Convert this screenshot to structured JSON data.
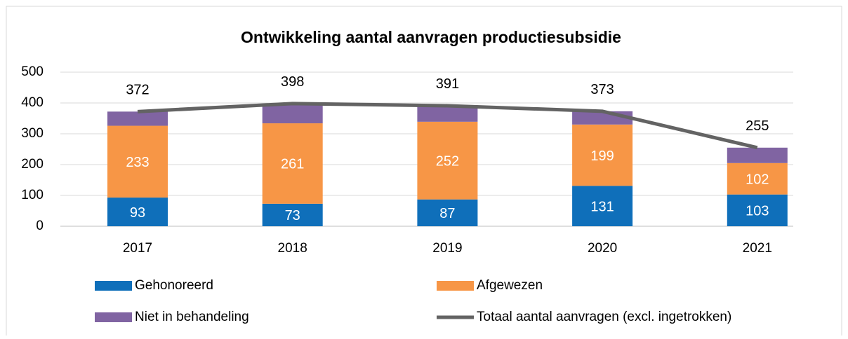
{
  "chart_data": {
    "type": "bar",
    "stacked": true,
    "title": "Ontwikkeling aantal aanvragen productiesubsidie",
    "categories": [
      "2017",
      "2018",
      "2019",
      "2020",
      "2021"
    ],
    "series": [
      {
        "name": "Gehonoreerd",
        "color": "#0f6fba",
        "values": [
          93,
          73,
          87,
          131,
          103
        ],
        "data_labels": true
      },
      {
        "name": "Afgewezen",
        "color": "#f79646",
        "values": [
          233,
          261,
          252,
          199,
          102
        ],
        "data_labels": true
      },
      {
        "name": "Niet in behandeling",
        "color": "#8064a2",
        "values": [
          46,
          64,
          52,
          43,
          50
        ],
        "data_labels": false
      },
      {
        "name": "Totaal aantal aanvragen (excl. ingetrokken)",
        "color": "#636363",
        "type": "line",
        "values": [
          372,
          398,
          391,
          373,
          255
        ],
        "data_labels": true
      }
    ],
    "ylim": [
      0,
      500
    ],
    "yticks": [
      0,
      100,
      200,
      300,
      400,
      500
    ],
    "grid": true,
    "legend": "bottom"
  }
}
